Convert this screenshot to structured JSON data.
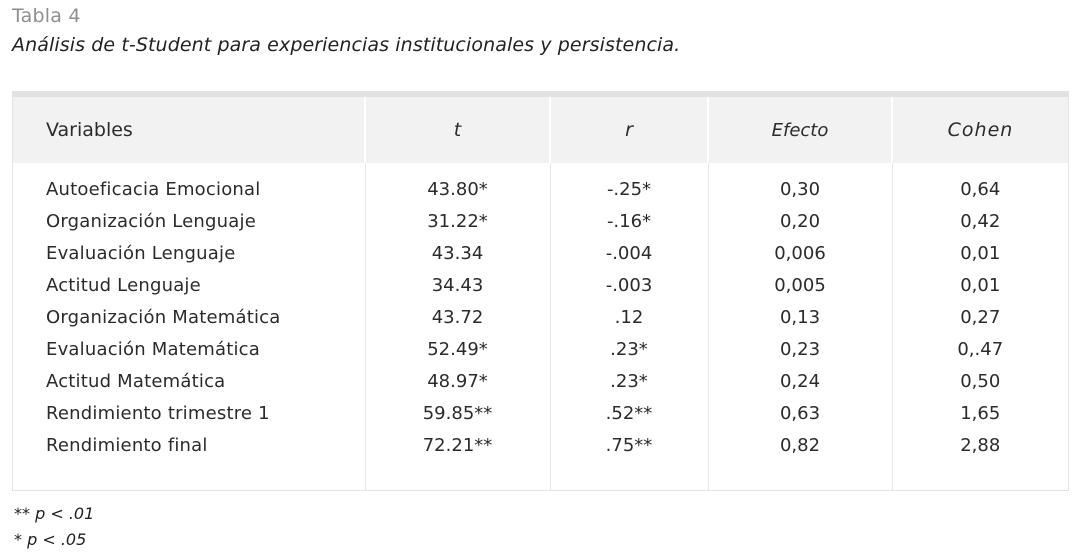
{
  "table": {
    "label": "Tabla 4",
    "caption": "Análisis de t-Student para experiencias institucionales y persistencia.",
    "headers": {
      "variables": "Variables",
      "t": "t",
      "r": "r",
      "efecto": "Efecto",
      "cohen": "Cohen"
    },
    "rows": [
      {
        "variable": "Autoeficacia Emocional",
        "t": "43.80*",
        "r": "-.25*",
        "efecto": "0,30",
        "cohen": "0,64"
      },
      {
        "variable": "Organización Lenguaje",
        "t": "31.22*",
        "r": "-.16*",
        "efecto": "0,20",
        "cohen": "0,42"
      },
      {
        "variable": "Evaluación Lenguaje",
        "t": "43.34",
        "r": "-.004",
        "efecto": "0,006",
        "cohen": "0,01"
      },
      {
        "variable": "Actitud Lenguaje",
        "t": "34.43",
        "r": "-.003",
        "efecto": "0,005",
        "cohen": "0,01"
      },
      {
        "variable": "Organización Matemática",
        "t": "43.72",
        "r": ".12",
        "efecto": "0,13",
        "cohen": "0,27"
      },
      {
        "variable": "Evaluación Matemática",
        "t": "52.49*",
        "r": ".23*",
        "efecto": "0,23",
        "cohen": "0,.47"
      },
      {
        "variable": "Actitud Matemática",
        "t": "48.97*",
        "r": ".23*",
        "efecto": "0,24",
        "cohen": "0,50"
      },
      {
        "variable": "Rendimiento trimestre 1",
        "t": "59.85**",
        "r": ".52**",
        "efecto": "0,63",
        "cohen": "1,65"
      },
      {
        "variable": "Rendimiento final",
        "t": "72.21**",
        "r": ".75**",
        "efecto": "0,82",
        "cohen": "2,88"
      }
    ],
    "notes": [
      "** p < .01",
      "* p < .05"
    ]
  }
}
